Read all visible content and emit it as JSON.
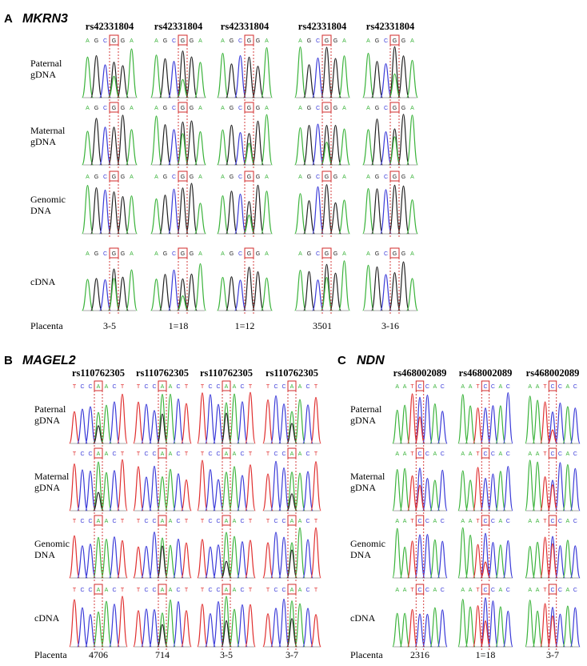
{
  "panels": [
    {
      "letter": "A",
      "gene": "MKRN3",
      "snps": [
        "rs42331804",
        "rs42331804",
        "rs42331804",
        "rs42331804",
        "rs42331804"
      ],
      "rows": [
        {
          "label_lines": [
            "Paternal",
            "gDNA"
          ]
        },
        {
          "label_lines": [
            "Maternal",
            "gDNA"
          ]
        },
        {
          "label_lines": [
            "Genomic",
            "DNA"
          ]
        },
        {
          "label_lines": [
            "cDNA"
          ]
        }
      ],
      "bases": [
        "A",
        "G",
        "C",
        "G",
        "G",
        "A"
      ],
      "sample_row_label": "Placenta",
      "samples": [
        "3-5",
        "1=18",
        "1=12",
        "3501",
        "3-16"
      ]
    },
    {
      "letter": "B",
      "gene": "MAGEL2",
      "snps": [
        "rs110762305",
        "rs110762305",
        "rs110762305",
        "rs110762305"
      ],
      "rows": [
        {
          "label_lines": [
            "Paternal",
            "gDNA"
          ]
        },
        {
          "label_lines": [
            "Maternal",
            "gDNA"
          ]
        },
        {
          "label_lines": [
            "Genomic",
            "DNA"
          ]
        },
        {
          "label_lines": [
            "cDNA"
          ]
        }
      ],
      "bases": [
        "T",
        "C",
        "C",
        "A",
        "A",
        "C",
        "T"
      ],
      "sample_row_label": "Placenta",
      "samples": [
        "4706",
        "714",
        "3-5",
        "3-7"
      ]
    },
    {
      "letter": "C",
      "gene": "NDN",
      "snps": [
        "rs468002089",
        "rs468002089",
        "rs468002089"
      ],
      "rows": [
        {
          "label_lines": [
            "Paternal",
            "gDNA"
          ]
        },
        {
          "label_lines": [
            "Maternal",
            "gDNA"
          ]
        },
        {
          "label_lines": [
            "Genomic",
            "DNA"
          ]
        },
        {
          "label_lines": [
            "cDNA"
          ]
        }
      ],
      "bases": [
        "A",
        "A",
        "T",
        "C",
        "C",
        "A",
        "C"
      ],
      "sample_row_label": "Placenta",
      "samples": [
        "2316",
        "1=18",
        "3-7"
      ]
    }
  ],
  "colors": {
    "A": "#3bb33b",
    "T": "#e03030",
    "G": "#222222",
    "C": "#3a3ad8",
    "highlight": "#d12a2a"
  }
}
